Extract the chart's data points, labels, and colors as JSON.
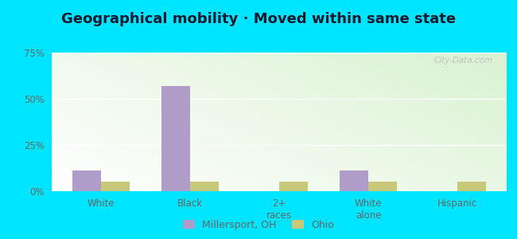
{
  "title": "Geographical mobility · Moved within same state",
  "categories": [
    "White",
    "Black",
    "2+\nraces",
    "White\nalone",
    "Hispanic"
  ],
  "millersport_values": [
    11,
    57,
    0,
    11,
    0
  ],
  "ohio_values": [
    5,
    5,
    5,
    5,
    5
  ],
  "millersport_color": "#b09cc8",
  "ohio_color": "#c8c87a",
  "bar_width": 0.32,
  "ylim": [
    0,
    75
  ],
  "yticks": [
    0,
    25,
    50,
    75
  ],
  "ytick_labels": [
    "0%",
    "25%",
    "50%",
    "75%"
  ],
  "legend_labels": [
    "Millersport, OH",
    "Ohio"
  ],
  "outer_background": "#00e5ff",
  "grid_color": "#ffffff",
  "watermark": "City-Data.com",
  "title_fontsize": 13,
  "tick_fontsize": 8.5,
  "legend_fontsize": 9,
  "axis_label_color": "#666666"
}
